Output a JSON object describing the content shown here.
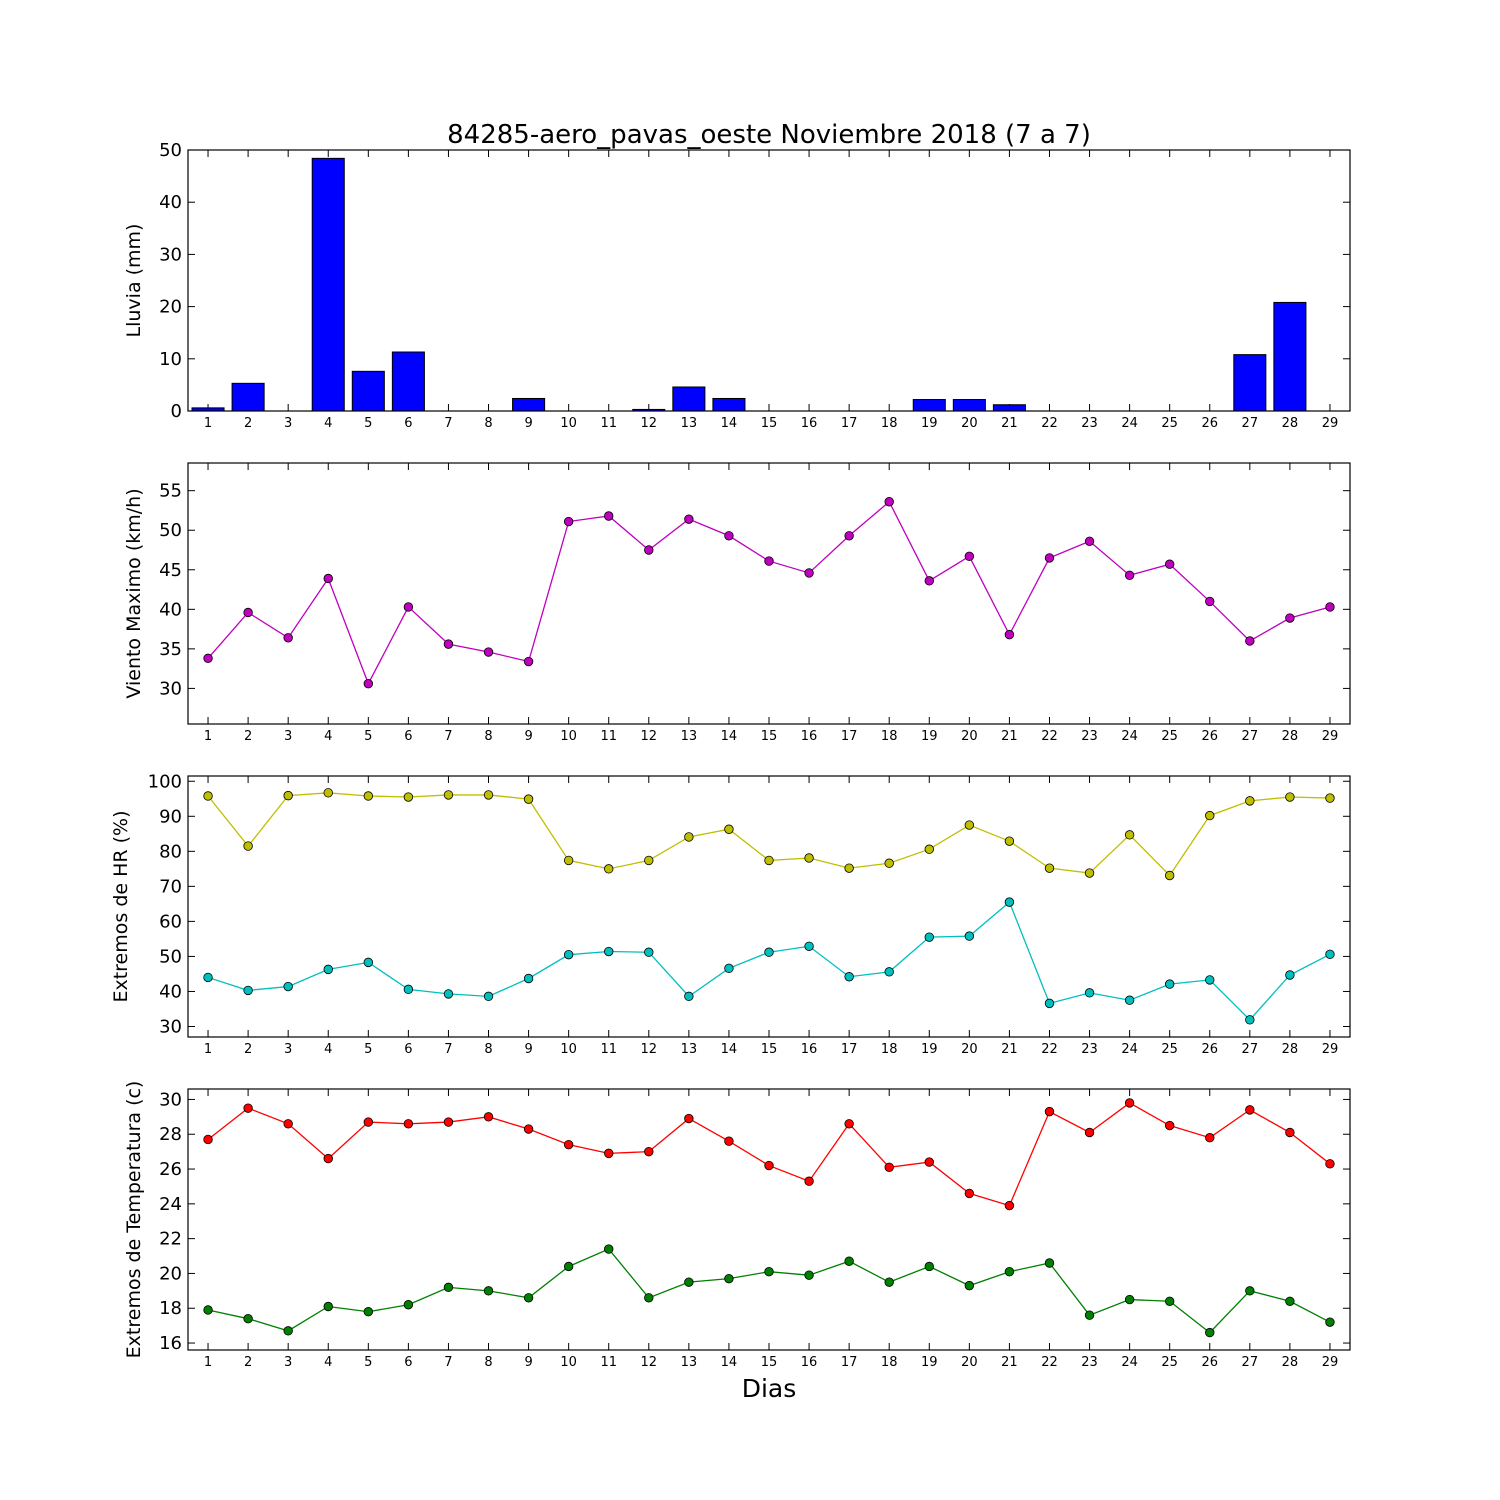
{
  "figure": {
    "title": "84285-aero_pavas_oeste Noviembre 2018  (7 a 7)",
    "xlabel": "Dias"
  },
  "colors": {
    "lluvia": "#0000ff",
    "viento": "#bf00bf",
    "hr_max": "#bfbf00",
    "hr_min": "#00bfbf",
    "t_max": "#ff0000",
    "t_min": "#008000"
  },
  "chart_data": [
    {
      "type": "bar",
      "ylabel": "Lluvia (mm)",
      "xlim": [
        0.5,
        29.5
      ],
      "ylim": [
        0,
        50
      ],
      "yticks": [
        0,
        10,
        20,
        30,
        40,
        50
      ],
      "categories": [
        1,
        2,
        3,
        4,
        5,
        6,
        7,
        8,
        9,
        10,
        11,
        12,
        13,
        14,
        15,
        16,
        17,
        18,
        19,
        20,
        21,
        22,
        23,
        24,
        25,
        26,
        27,
        28,
        29
      ],
      "series": [
        {
          "color": "#0000ff",
          "values": [
            0.6,
            5.3,
            0,
            48.4,
            7.6,
            11.3,
            0,
            0,
            2.4,
            0,
            0,
            0.3,
            4.6,
            2.4,
            0,
            0,
            0,
            0,
            2.2,
            2.2,
            1.2,
            0,
            0,
            0,
            0,
            0,
            10.8,
            20.8,
            0
          ]
        }
      ]
    },
    {
      "type": "line",
      "ylabel": "Viento Maximo (km/h)",
      "xlim": [
        0.5,
        29.5
      ],
      "ylim": [
        25.5,
        58.5
      ],
      "yticks": [
        30,
        35,
        40,
        45,
        50,
        55
      ],
      "x": [
        1,
        2,
        3,
        4,
        5,
        6,
        7,
        8,
        9,
        10,
        11,
        12,
        13,
        14,
        15,
        16,
        17,
        18,
        19,
        20,
        21,
        22,
        23,
        24,
        25,
        26,
        27,
        28,
        29
      ],
      "series": [
        {
          "color": "#bf00bf",
          "values": [
            33.8,
            39.6,
            36.4,
            43.9,
            30.6,
            40.3,
            35.6,
            34.6,
            33.4,
            51.1,
            51.8,
            47.5,
            51.4,
            49.3,
            46.1,
            44.6,
            49.3,
            53.6,
            43.6,
            46.7,
            36.8,
            46.5,
            48.6,
            44.3,
            45.7,
            41.0,
            36.0,
            38.9,
            40.3
          ]
        }
      ]
    },
    {
      "type": "line",
      "ylabel": "Extremos de HR (%)",
      "xlim": [
        0.5,
        29.5
      ],
      "ylim": [
        27,
        101.5
      ],
      "yticks": [
        30,
        40,
        50,
        60,
        70,
        80,
        90,
        100
      ],
      "x": [
        1,
        2,
        3,
        4,
        5,
        6,
        7,
        8,
        9,
        10,
        11,
        12,
        13,
        14,
        15,
        16,
        17,
        18,
        19,
        20,
        21,
        22,
        23,
        24,
        25,
        26,
        27,
        28,
        29
      ],
      "series": [
        {
          "color": "#bfbf00",
          "values": [
            95.8,
            81.5,
            95.9,
            96.7,
            95.8,
            95.5,
            96.1,
            96.1,
            94.9,
            77.4,
            75.0,
            77.4,
            84.1,
            86.3,
            77.4,
            78.1,
            75.2,
            76.6,
            80.6,
            87.5,
            82.9,
            75.2,
            73.8,
            84.7,
            73.1,
            90.2,
            94.4,
            95.5,
            95.2
          ]
        },
        {
          "color": "#00bfbf",
          "values": [
            44.0,
            40.3,
            41.4,
            46.3,
            48.3,
            40.6,
            39.3,
            38.6,
            43.7,
            50.5,
            51.4,
            51.2,
            38.6,
            46.6,
            51.2,
            52.9,
            44.2,
            45.6,
            55.5,
            55.8,
            65.5,
            36.6,
            39.6,
            37.5,
            42.1,
            43.3,
            31.9,
            44.7,
            50.6
          ]
        }
      ]
    },
    {
      "type": "line",
      "ylabel": "Extremos de Temperatura (c)",
      "xlim": [
        0.5,
        29.5
      ],
      "ylim": [
        15.6,
        30.6
      ],
      "yticks": [
        16,
        18,
        20,
        22,
        24,
        26,
        28,
        30
      ],
      "x": [
        1,
        2,
        3,
        4,
        5,
        6,
        7,
        8,
        9,
        10,
        11,
        12,
        13,
        14,
        15,
        16,
        17,
        18,
        19,
        20,
        21,
        22,
        23,
        24,
        25,
        26,
        27,
        28,
        29
      ],
      "series": [
        {
          "color": "#ff0000",
          "values": [
            27.7,
            29.5,
            28.6,
            26.6,
            28.7,
            28.6,
            28.7,
            29.0,
            28.3,
            27.4,
            26.9,
            27.0,
            28.9,
            27.6,
            26.2,
            25.3,
            28.6,
            26.1,
            26.4,
            24.6,
            23.9,
            29.3,
            28.1,
            29.8,
            28.5,
            27.8,
            29.4,
            28.1,
            26.3
          ]
        },
        {
          "color": "#008000",
          "values": [
            17.9,
            17.4,
            16.7,
            18.1,
            17.8,
            18.2,
            19.2,
            19.0,
            18.6,
            20.4,
            21.4,
            18.6,
            19.5,
            19.7,
            20.1,
            19.9,
            20.7,
            19.5,
            20.4,
            19.3,
            20.1,
            20.6,
            17.6,
            18.5,
            18.4,
            16.6,
            19.0,
            18.4,
            17.2
          ]
        }
      ]
    }
  ]
}
